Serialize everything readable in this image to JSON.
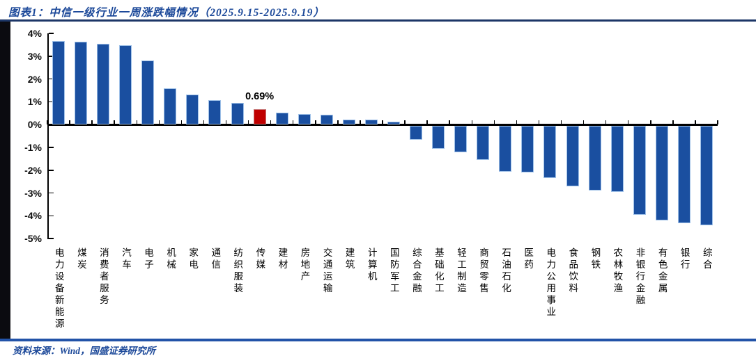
{
  "header": {
    "figure_title": "图表1：中信一级行业一周涨跌幅情况（2025.9.15-2025.9.19）"
  },
  "footer": {
    "source": "资料来源：Wind，国盛证券研究所"
  },
  "colors": {
    "bar_blue": "#1A4FA0",
    "bar_edge_light": "#9FC1E8",
    "highlight_red": "#C00000",
    "highlight_edge": "#C87878",
    "accent_text_blue": "#1B4899",
    "rule_top_navy": "#1C3667",
    "rule_bottom_blue": "#2253A8",
    "left_band_black": "#0B0B10",
    "axis_black": "#000000"
  },
  "chart_data": {
    "type": "bar",
    "title": "中信一级行业一周涨跌幅情况（2025.9.15-2025.9.19）",
    "categories": [
      "电力设备新能源",
      "煤炭",
      "消费者服务",
      "汽车",
      "电子",
      "机械",
      "家电",
      "通信",
      "纺织服装",
      "传媒",
      "建材",
      "房地产",
      "交通运输",
      "建筑",
      "计算机",
      "国防军工",
      "综合金融",
      "基础化工",
      "轻工制造",
      "商贸零售",
      "石油石化",
      "医药",
      "电力公用事业",
      "食品饮料",
      "钢铁",
      "农林牧渔",
      "非银行金融",
      "有色金属",
      "银行",
      "综合"
    ],
    "values": [
      3.65,
      3.62,
      3.55,
      3.47,
      2.82,
      1.6,
      1.32,
      1.06,
      0.95,
      0.69,
      0.51,
      0.45,
      0.44,
      0.21,
      0.21,
      0.13,
      -0.6,
      -1.01,
      -1.14,
      -1.5,
      -2.01,
      -2.04,
      -2.27,
      -2.66,
      -2.84,
      -2.89,
      -3.91,
      -4.13,
      -4.25,
      -4.36
    ],
    "unit": "%",
    "highlight": {
      "category": "传媒",
      "value": 0.69,
      "label": "0.69%",
      "color": "#C00000"
    },
    "xlabel": "",
    "ylabel": "",
    "ylim": [
      -5,
      4
    ],
    "ytick_labels": [
      "4%",
      "3%",
      "2%",
      "1%",
      "0%",
      "-1%",
      "-2%",
      "-3%",
      "-4%",
      "-5%"
    ],
    "ytick_values": [
      4,
      3,
      2,
      1,
      0,
      -1,
      -2,
      -3,
      -4,
      -5
    ],
    "grid": false,
    "legend": "none"
  }
}
